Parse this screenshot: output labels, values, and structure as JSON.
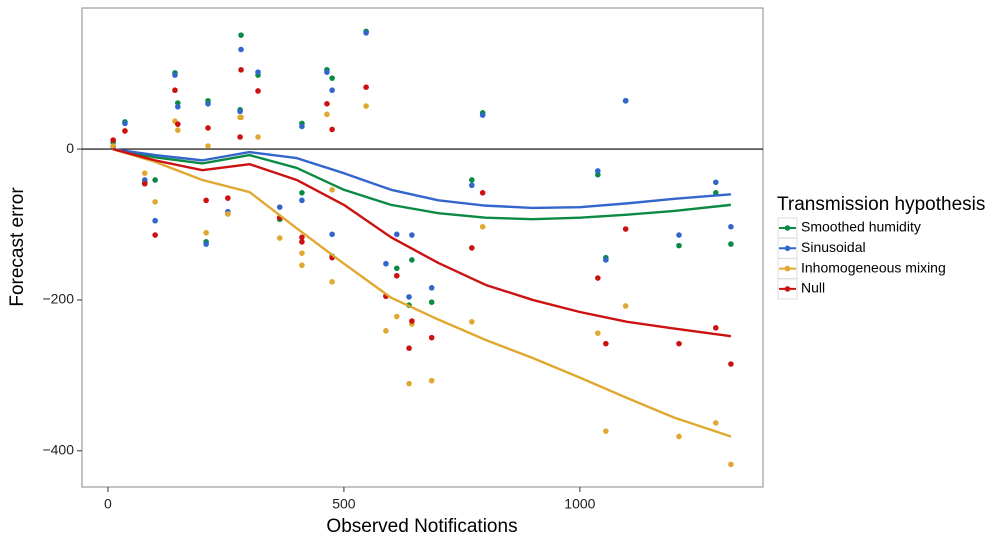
{
  "chart_data": {
    "type": "scatter",
    "x_label": "Observed Notifications",
    "y_label": "Forecast error",
    "legend_title": "Transmission hypothesis",
    "xlim": [
      -55,
      1388
    ],
    "ylim": [
      -448,
      187
    ],
    "xticks": [
      0,
      500,
      1000
    ],
    "yticks": [
      {
        "value": -400,
        "label": "−400"
      },
      {
        "value": -200,
        "label": "−200"
      },
      0
    ],
    "hline": 0,
    "x": [
      11,
      36,
      78,
      100,
      142,
      148,
      208,
      212,
      254,
      280,
      282,
      318,
      364,
      411,
      411,
      464,
      475,
      475,
      547,
      589,
      612,
      638,
      644,
      686,
      771,
      794,
      1038,
      1055,
      1097,
      1210,
      1288,
      1320
    ],
    "smooth_x": [
      10,
      100,
      200,
      300,
      400,
      500,
      600,
      700,
      800,
      900,
      1000,
      1100,
      1200,
      1320
    ],
    "series": [
      {
        "name": "Smoothed humidity",
        "color": "#0a8a42",
        "values": [
          9,
          36,
          -44,
          -41,
          101,
          61,
          -123,
          64,
          -86,
          52,
          151,
          98,
          -93,
          34,
          -58,
          105,
          94,
          -142,
          156,
          -195,
          -158,
          -207,
          -147,
          -203,
          -41,
          48,
          -34,
          -144,
          64,
          -128,
          -58,
          -126
        ],
        "smooth_values": [
          0,
          -11,
          -19,
          -8,
          -25,
          -54,
          -74,
          -85,
          -91,
          -93,
          -91,
          -87,
          -82,
          -74
        ]
      },
      {
        "name": "Sinusoidal",
        "color": "#3366cc",
        "values": [
          3,
          34,
          -41,
          -95,
          98,
          56,
          -126,
          60,
          -83,
          50,
          132,
          102,
          -77,
          30,
          -68,
          102,
          78,
          -113,
          154,
          -152,
          -113,
          -196,
          -114,
          -184,
          -48,
          45,
          -29,
          -147,
          64,
          -114,
          -44,
          -103
        ],
        "smooth_values": [
          0,
          -8,
          -15,
          -4,
          -12,
          -32,
          -54,
          -68,
          -75,
          -78,
          -77,
          -72,
          -66,
          -60
        ]
      },
      {
        "name": "Inhomogeneous mixing",
        "color": "#e0a830",
        "values": [
          4,
          24,
          -32,
          -70,
          37,
          25,
          -111,
          4,
          -86,
          42,
          42,
          16,
          -118,
          -154,
          -138,
          46,
          -54,
          -176,
          57,
          -241,
          -222,
          -311,
          -232,
          -307,
          -229,
          -103,
          -244,
          -374,
          -208,
          -381,
          -363,
          -418
        ],
        "smooth_values": [
          0,
          -17,
          -41,
          -57,
          -105,
          -152,
          -197,
          -226,
          -253,
          -277,
          -303,
          -330,
          -356,
          -381
        ]
      },
      {
        "name": "Null",
        "color": "#cc1111",
        "values": [
          12,
          24,
          -46,
          -114,
          78,
          33,
          -68,
          28,
          -65,
          16,
          105,
          77,
          -91,
          -117,
          -123,
          60,
          26,
          -144,
          82,
          -195,
          -168,
          -264,
          -228,
          -250,
          -131,
          -58,
          -171,
          -258,
          -106,
          -258,
          -237,
          -285
        ],
        "smooth_values": [
          0,
          -15,
          -28,
          -20,
          -41,
          -74,
          -117,
          -151,
          -180,
          -200,
          -216,
          -229,
          -238,
          -248
        ]
      }
    ]
  }
}
